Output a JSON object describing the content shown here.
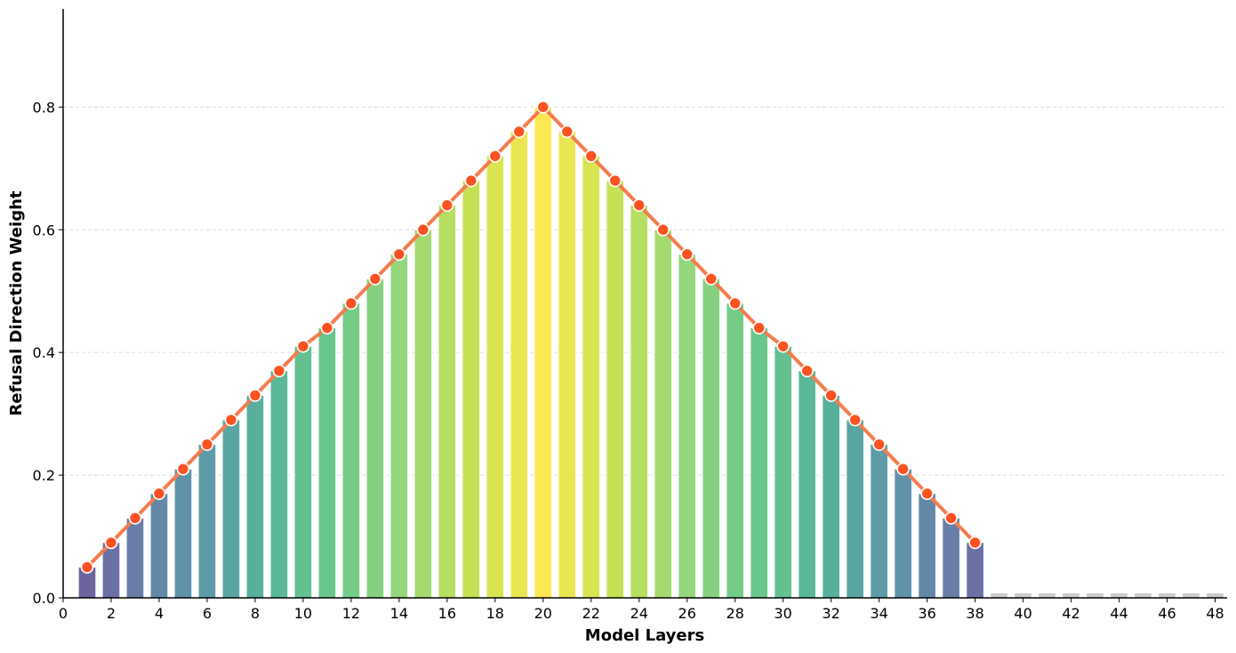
{
  "chart_data": {
    "type": "bar",
    "title": "",
    "xlabel": "Model Layers",
    "ylabel": "Refusal Direction Weight",
    "x": [
      1,
      2,
      3,
      4,
      5,
      6,
      7,
      8,
      9,
      10,
      11,
      12,
      13,
      14,
      15,
      16,
      17,
      18,
      19,
      20,
      21,
      22,
      23,
      24,
      25,
      26,
      27,
      28,
      29,
      30,
      31,
      32,
      33,
      34,
      35,
      36,
      37,
      38,
      39,
      40,
      41,
      42,
      43,
      44,
      45,
      46,
      47,
      48
    ],
    "values": [
      0.05,
      0.09,
      0.13,
      0.17,
      0.21,
      0.25,
      0.29,
      0.33,
      0.37,
      0.41,
      0.44,
      0.48,
      0.52,
      0.56,
      0.6,
      0.64,
      0.68,
      0.72,
      0.76,
      0.8,
      0.76,
      0.72,
      0.68,
      0.64,
      0.6,
      0.56,
      0.52,
      0.48,
      0.44,
      0.41,
      0.37,
      0.33,
      0.29,
      0.25,
      0.21,
      0.17,
      0.13,
      0.09,
      0.008,
      0.008,
      0.008,
      0.008,
      0.008,
      0.008,
      0.008,
      0.008,
      0.008,
      0.008
    ],
    "line_series": {
      "x": [
        1,
        2,
        3,
        4,
        5,
        6,
        7,
        8,
        9,
        10,
        11,
        12,
        13,
        14,
        15,
        16,
        17,
        18,
        19,
        20,
        21,
        22,
        23,
        24,
        25,
        26,
        27,
        28,
        29,
        30,
        31,
        32,
        33,
        34,
        35,
        36,
        37,
        38
      ],
      "values": [
        0.05,
        0.09,
        0.13,
        0.17,
        0.21,
        0.25,
        0.29,
        0.33,
        0.37,
        0.41,
        0.44,
        0.48,
        0.52,
        0.56,
        0.6,
        0.64,
        0.68,
        0.72,
        0.76,
        0.8,
        0.76,
        0.72,
        0.68,
        0.64,
        0.6,
        0.56,
        0.52,
        0.48,
        0.44,
        0.41,
        0.37,
        0.33,
        0.29,
        0.25,
        0.21,
        0.17,
        0.13,
        0.09
      ]
    },
    "xticks": [
      0,
      2,
      4,
      6,
      8,
      10,
      12,
      14,
      16,
      18,
      20,
      22,
      24,
      26,
      28,
      30,
      32,
      34,
      36,
      38,
      40,
      42,
      44,
      46,
      48
    ],
    "yticks": [
      0.0,
      0.2,
      0.4,
      0.6,
      0.8
    ],
    "xlim": [
      0,
      48.5
    ],
    "ylim": [
      0,
      0.96
    ],
    "grid": "horizontal-dashed",
    "colors": {
      "line": "#f47c4f",
      "marker_fill": "#fc5222",
      "marker_edge": "#ffffff",
      "inactive_bar": "#cccccc",
      "grid": "#dddddd",
      "axis": "#000000",
      "bar_gradient": [
        "#6f5196",
        "#6a7aa6",
        "#5e97a8",
        "#55b39b",
        "#6cc98a",
        "#9ad77a",
        "#c8e251",
        "#fde854"
      ]
    }
  }
}
